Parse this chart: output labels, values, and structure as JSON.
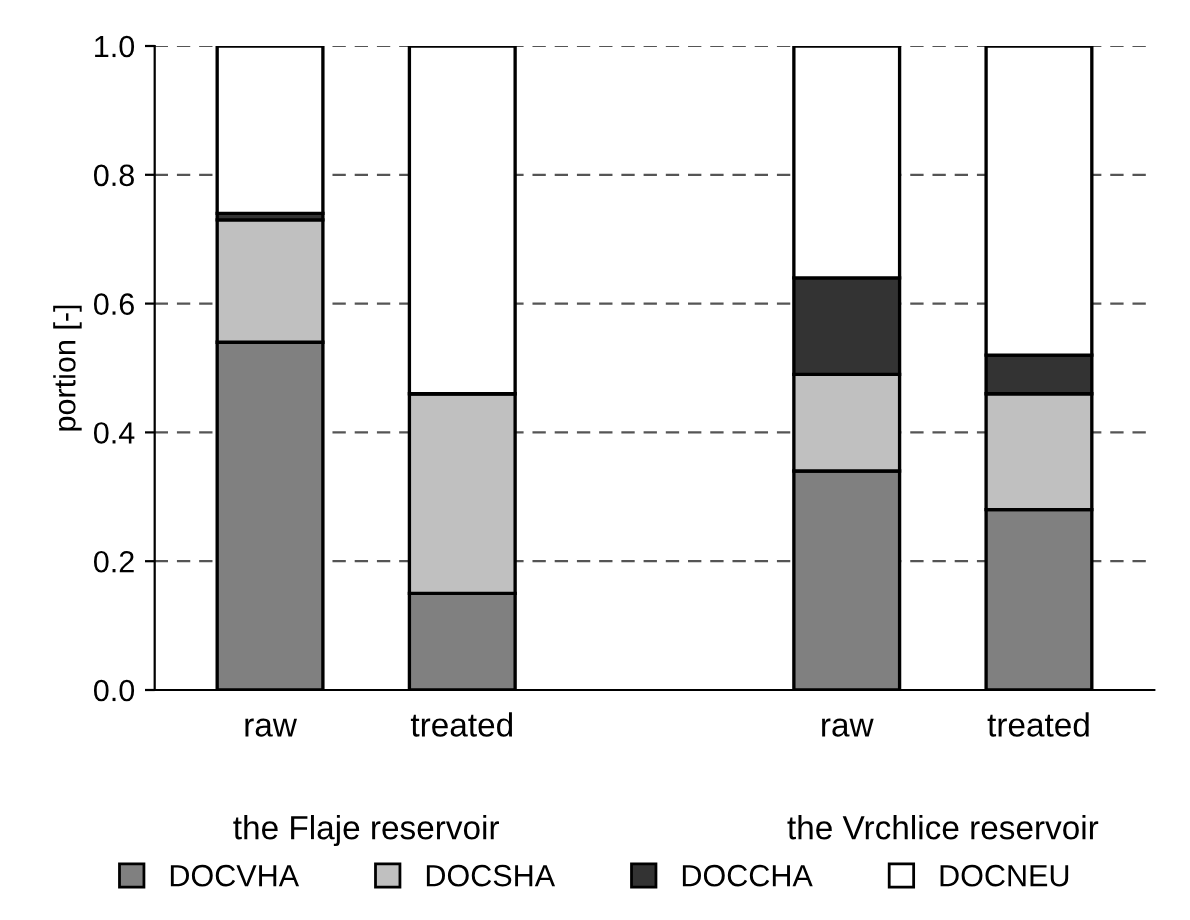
{
  "chart_data": {
    "type": "bar",
    "stacked": true,
    "ylabel": "portion [-]",
    "categories": [
      "raw",
      "treated",
      null,
      "raw",
      "treated"
    ],
    "series": [
      {
        "name": "DOCVHA",
        "color": "#808080",
        "values": [
          0.54,
          0.15,
          null,
          0.34,
          0.28
        ]
      },
      {
        "name": "DOCSHA",
        "color": "#c0c0c0",
        "values": [
          0.19,
          0.31,
          null,
          0.15,
          0.18
        ]
      },
      {
        "name": "DOCCHA",
        "color": "#333333",
        "values": [
          0.01,
          0.0,
          null,
          0.15,
          0.06
        ]
      },
      {
        "name": "DOCNEU",
        "color": "#ffffff",
        "values": [
          0.26,
          0.54,
          null,
          0.36,
          0.48
        ]
      }
    ],
    "ylim": [
      0,
      1
    ],
    "yticks": [
      {
        "value": 0,
        "label": "0.0"
      },
      {
        "value": 0.2,
        "label": "0.2"
      },
      {
        "value": 0.4,
        "label": "0.4"
      },
      {
        "value": 0.6,
        "label": "0.6"
      },
      {
        "value": 0.8,
        "label": "0.8"
      },
      {
        "value": 1,
        "label": "1.0"
      }
    ],
    "grid": "y",
    "legend": "bottom",
    "annotations": [
      "the Flaje reservoir",
      "the Vrchlice reservoir"
    ]
  }
}
